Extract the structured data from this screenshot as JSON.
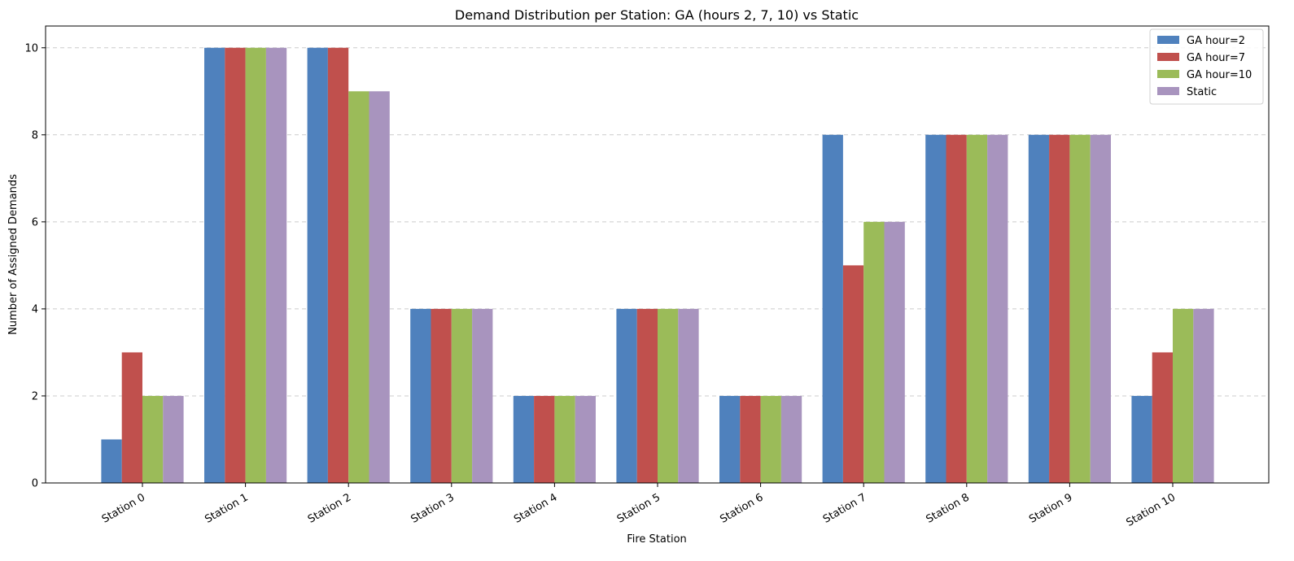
{
  "chart_data": {
    "type": "bar",
    "title": "Demand Distribution per Station: GA (hours 2, 7, 10) vs Static",
    "xlabel": "Fire Station",
    "ylabel": "Number of Assigned Demands",
    "ylim": [
      0,
      10.5
    ],
    "yticks": [
      0,
      2,
      4,
      6,
      8,
      10
    ],
    "grid": "y-dashed",
    "legend_position": "top-right",
    "categories": [
      "Station 0",
      "Station 1",
      "Station 2",
      "Station 3",
      "Station 4",
      "Station 5",
      "Station 6",
      "Station 7",
      "Station 8",
      "Station 9",
      "Station 10"
    ],
    "series": [
      {
        "name": "GA hour=2",
        "color": "#4f81bd",
        "values": [
          1,
          10,
          10,
          4,
          2,
          4,
          2,
          8,
          8,
          8,
          2
        ]
      },
      {
        "name": "GA hour=7",
        "color": "#c0504d",
        "values": [
          3,
          10,
          10,
          4,
          2,
          4,
          2,
          5,
          8,
          8,
          3
        ]
      },
      {
        "name": "GA hour=10",
        "color": "#9bbb59",
        "values": [
          2,
          10,
          9,
          4,
          2,
          4,
          2,
          6,
          8,
          8,
          4
        ]
      },
      {
        "name": "Static",
        "color": "#a894be",
        "values": [
          2,
          10,
          9,
          4,
          2,
          4,
          2,
          6,
          8,
          8,
          4
        ]
      }
    ]
  }
}
